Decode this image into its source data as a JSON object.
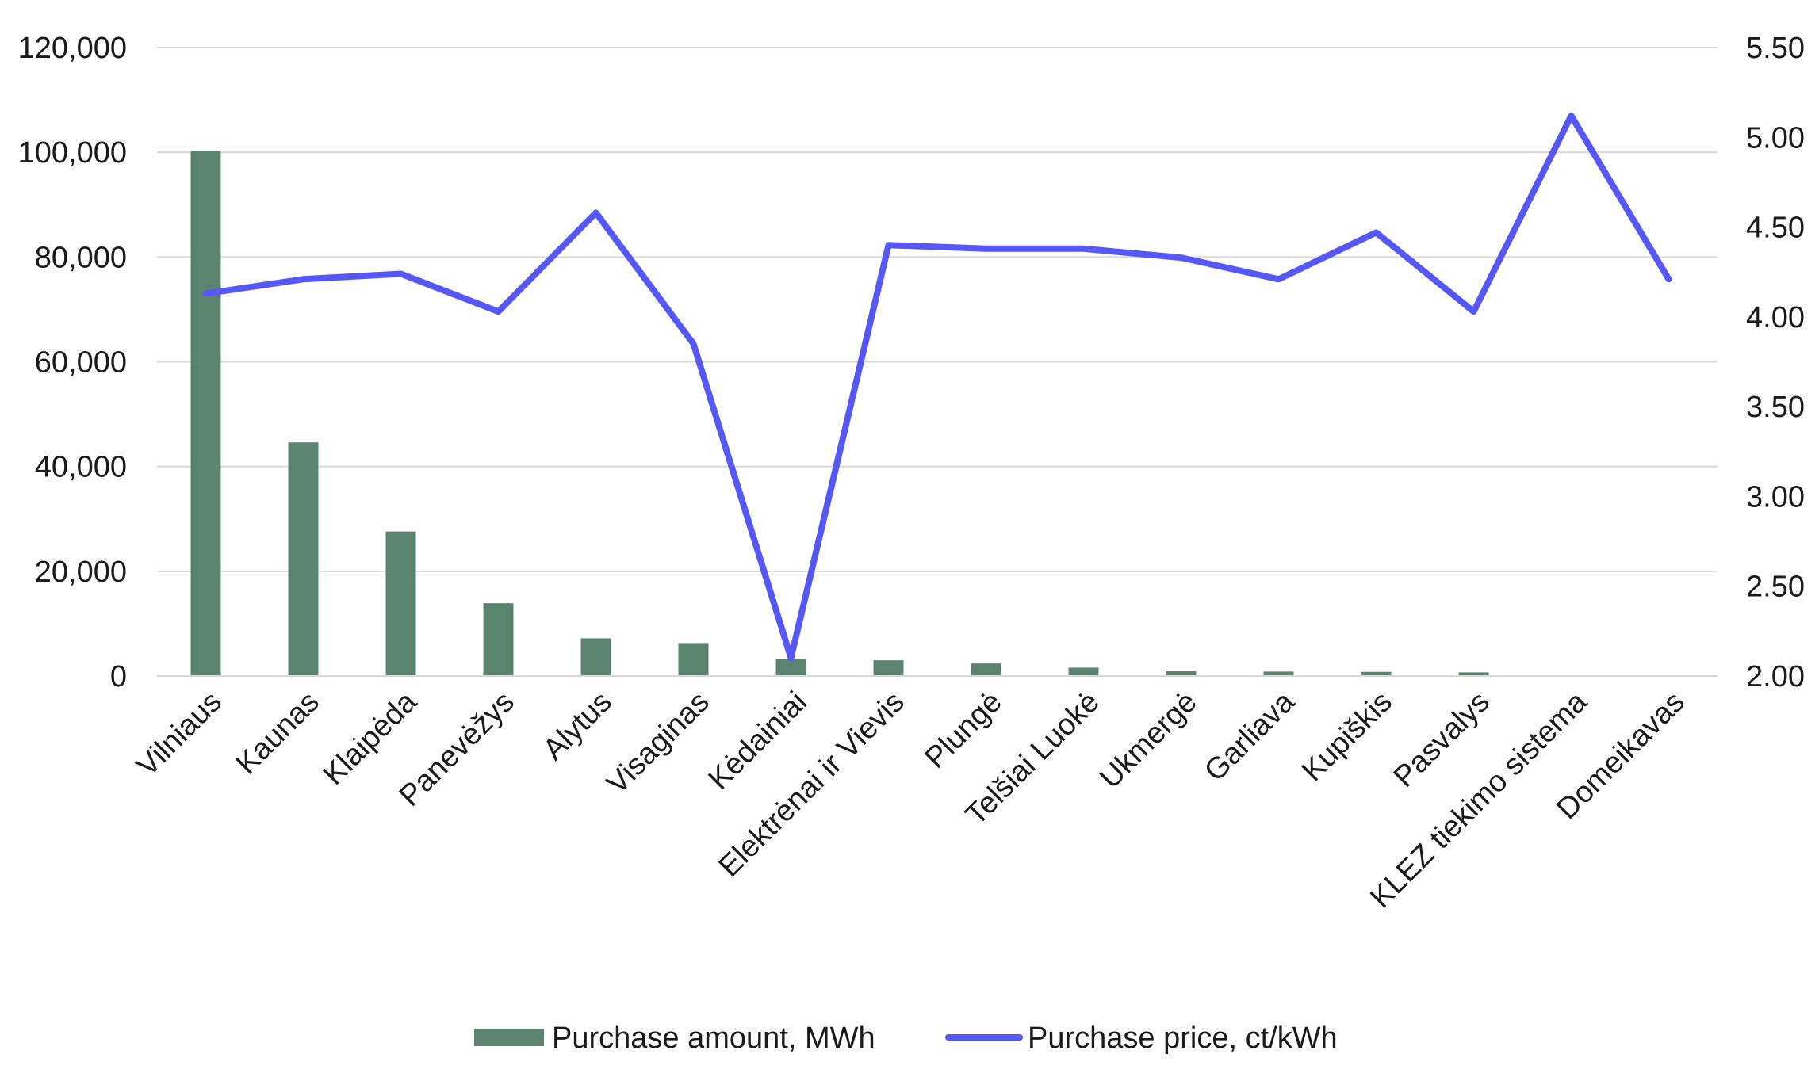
{
  "chart_data": {
    "type": "bar+line",
    "categories": [
      "Vilniaus",
      "Kaunas",
      "Klaipėda",
      "Panevėžys",
      "Alytus",
      "Visaginas",
      "Kėdainiai",
      "Elektrėnai ir Vievis",
      "Plungė",
      "Telšiai Luokė",
      "Ukmergė",
      "Garliava",
      "Kupiškis",
      "Pasvalys",
      "KLEZ tiekimo sistema",
      "Domeikavas"
    ],
    "series": [
      {
        "name": "Purchase amount, MWh",
        "type": "bar",
        "axis": "left",
        "color": "#5b8470",
        "values": [
          100300,
          44600,
          27600,
          13900,
          7200,
          6300,
          3200,
          3000,
          2400,
          1600,
          900,
          850,
          800,
          700,
          0,
          0
        ]
      },
      {
        "name": "Purchase price, ct/kWh",
        "type": "line",
        "axis": "right",
        "color": "#5558f5",
        "values": [
          4.13,
          4.21,
          4.24,
          4.03,
          4.58,
          3.85,
          2.1,
          4.4,
          4.38,
          4.38,
          4.33,
          4.21,
          4.47,
          4.03,
          5.12,
          4.21
        ]
      }
    ],
    "y_left": {
      "min": 0,
      "max": 120000,
      "ticks": [
        "0",
        "20,000",
        "40,000",
        "60,000",
        "80,000",
        "100,000",
        "120,000"
      ]
    },
    "y_right": {
      "min": 2.0,
      "max": 5.5,
      "ticks": [
        "2.00",
        "2.50",
        "3.00",
        "3.50",
        "4.00",
        "4.50",
        "5.00",
        "5.50"
      ]
    },
    "grid": true,
    "legend_position": "bottom"
  }
}
